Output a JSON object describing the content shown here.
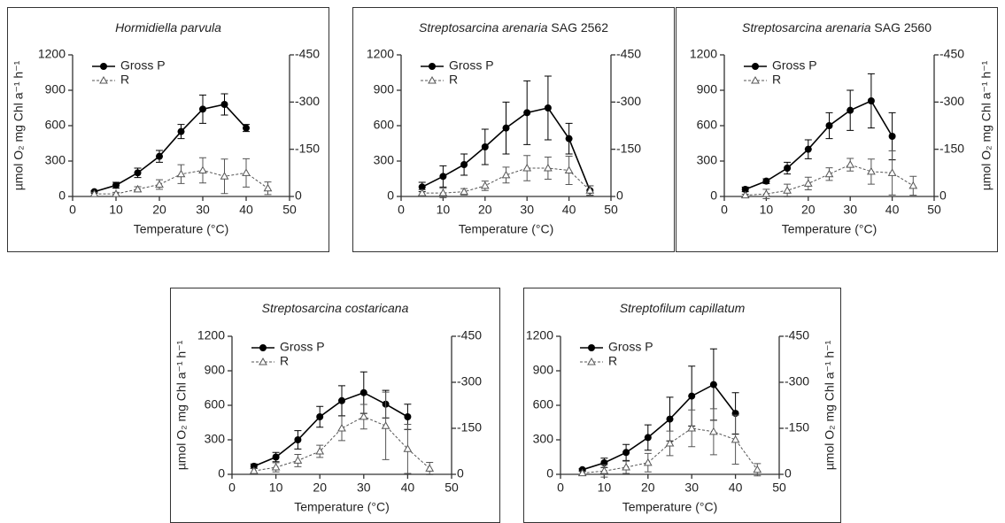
{
  "chart_data": [
    {
      "type": "line",
      "title": "Hormidiella parvula",
      "x_label": "Temperature (°C)",
      "y_label": "µmol O₂ mg Chl a⁻¹ h⁻¹",
      "y_label_side": "left",
      "x": [
        5,
        10,
        15,
        20,
        25,
        30,
        35,
        40,
        45
      ],
      "series": [
        {
          "name": "Gross P",
          "color": "#000000",
          "marker": "circle",
          "dashed": false,
          "values": [
            40,
            95,
            200,
            340,
            550,
            740,
            780,
            580,
            null
          ],
          "errors": [
            10,
            25,
            40,
            50,
            60,
            120,
            90,
            30,
            null
          ]
        },
        {
          "name": "R",
          "color": "#555555",
          "marker": "triangle",
          "dashed": true,
          "axis": "y2",
          "values": [
            -8,
            -8,
            -23,
            -38,
            -71,
            -83,
            -64,
            -75,
            -26
          ],
          "errors": [
            5,
            5,
            8,
            15,
            30,
            40,
            55,
            45,
            20
          ]
        }
      ],
      "xlim": [
        0,
        50
      ],
      "xticks": [
        0,
        10,
        20,
        30,
        40,
        50
      ],
      "ylim": [
        0,
        1200
      ],
      "yticks": [
        0,
        300,
        600,
        900,
        1200
      ],
      "y2lim": [
        0,
        -450
      ],
      "y2ticks": [
        0,
        -150,
        -300,
        -450
      ],
      "legend": "upper left"
    },
    {
      "type": "line",
      "title": "Streptosarcina arenaria",
      "strain": "SAG 2562",
      "x_label": "Temperature (°C)",
      "x": [
        5,
        10,
        15,
        20,
        25,
        30,
        35,
        40,
        45
      ],
      "series": [
        {
          "name": "Gross P",
          "color": "#000000",
          "marker": "circle",
          "dashed": false,
          "values": [
            80,
            170,
            270,
            420,
            580,
            710,
            750,
            490,
            50
          ],
          "errors": [
            40,
            90,
            90,
            150,
            220,
            270,
            270,
            130,
            40
          ]
        },
        {
          "name": "R",
          "color": "#555555",
          "marker": "triangle",
          "dashed": true,
          "axis": "y2",
          "values": [
            -11,
            -11,
            -15,
            -34,
            -68,
            -90,
            -90,
            -83,
            -19
          ],
          "errors": [
            10,
            15,
            10,
            15,
            25,
            40,
            35,
            45,
            15
          ]
        }
      ],
      "xlim": [
        0,
        50
      ],
      "xticks": [
        0,
        10,
        20,
        30,
        40,
        50
      ],
      "ylim": [
        0,
        1200
      ],
      "yticks": [
        0,
        300,
        600,
        900,
        1200
      ],
      "y2lim": [
        0,
        -450
      ],
      "y2ticks": [
        0,
        -150,
        -300,
        -450
      ],
      "legend": "upper left"
    },
    {
      "type": "line",
      "title": "Streptosarcina arenaria",
      "strain": "SAG 2560",
      "x_label": "Temperature (°C)",
      "y_label": "µmol O₂ mg Chl a⁻¹ h⁻¹",
      "y_label_side": "right",
      "x": [
        5,
        10,
        15,
        20,
        25,
        30,
        35,
        40,
        45
      ],
      "series": [
        {
          "name": "Gross P",
          "color": "#000000",
          "marker": "circle",
          "dashed": false,
          "values": [
            60,
            130,
            240,
            400,
            600,
            730,
            810,
            510,
            null
          ],
          "errors": [
            20,
            20,
            50,
            80,
            110,
            170,
            230,
            200,
            null
          ]
        },
        {
          "name": "R",
          "color": "#555555",
          "marker": "triangle",
          "dashed": true,
          "axis": "y2",
          "values": [
            -4,
            -8,
            -19,
            -41,
            -71,
            -101,
            -79,
            -75,
            -34
          ],
          "errors": [
            3,
            15,
            20,
            20,
            20,
            20,
            40,
            70,
            30
          ]
        }
      ],
      "xlim": [
        0,
        50
      ],
      "xticks": [
        0,
        10,
        20,
        30,
        40,
        50
      ],
      "ylim": [
        0,
        1200
      ],
      "yticks": [
        0,
        300,
        600,
        900,
        1200
      ],
      "y2lim": [
        0,
        -450
      ],
      "y2ticks": [
        0,
        -150,
        -300,
        -450
      ],
      "legend": "upper left"
    },
    {
      "type": "line",
      "title": "Streptosarcina costaricana",
      "x_label": "Temperature (°C)",
      "y_label": "µmol O₂ mg Chl a⁻¹ h⁻¹",
      "y_label_side": "left",
      "x": [
        5,
        10,
        15,
        20,
        25,
        30,
        35,
        40,
        45
      ],
      "series": [
        {
          "name": "Gross P",
          "color": "#000000",
          "marker": "circle",
          "dashed": false,
          "values": [
            70,
            150,
            300,
            500,
            640,
            710,
            610,
            500,
            null
          ],
          "errors": [
            20,
            40,
            80,
            90,
            130,
            180,
            120,
            110,
            null
          ]
        },
        {
          "name": "R",
          "color": "#555555",
          "marker": "triangle",
          "dashed": true,
          "axis": "y2",
          "values": [
            -11,
            -23,
            -45,
            -75,
            -150,
            -188,
            -158,
            -83,
            -19
          ],
          "errors": [
            8,
            15,
            20,
            20,
            40,
            40,
            110,
            80,
            20
          ]
        }
      ],
      "xlim": [
        0,
        50
      ],
      "xticks": [
        0,
        10,
        20,
        30,
        40,
        50
      ],
      "ylim": [
        0,
        1200
      ],
      "yticks": [
        0,
        300,
        600,
        900,
        1200
      ],
      "y2lim": [
        0,
        -450
      ],
      "y2ticks": [
        0,
        -150,
        -300,
        -450
      ],
      "legend": "upper left"
    },
    {
      "type": "line",
      "title": "Streptofilum capillatum",
      "x_label": "Temperature (°C)",
      "y_label": "µmol O₂ mg Chl a⁻¹ h⁻¹",
      "y_label_side": "right",
      "x": [
        5,
        10,
        15,
        20,
        25,
        30,
        35,
        40,
        45
      ],
      "series": [
        {
          "name": "Gross P",
          "color": "#000000",
          "marker": "circle",
          "dashed": false,
          "values": [
            40,
            100,
            190,
            320,
            480,
            680,
            780,
            530,
            null
          ],
          "errors": [
            10,
            40,
            70,
            110,
            190,
            260,
            310,
            180,
            null
          ]
        },
        {
          "name": "R",
          "color": "#555555",
          "marker": "triangle",
          "dashed": true,
          "axis": "y2",
          "values": [
            -4,
            -11,
            -23,
            -38,
            -101,
            -150,
            -139,
            -113,
            -15
          ],
          "errors": [
            5,
            20,
            20,
            30,
            40,
            60,
            75,
            80,
            20
          ]
        }
      ],
      "xlim": [
        0,
        50
      ],
      "xticks": [
        0,
        10,
        20,
        30,
        40,
        50
      ],
      "ylim": [
        0,
        1200
      ],
      "yticks": [
        0,
        300,
        600,
        900,
        1200
      ],
      "y2lim": [
        0,
        -450
      ],
      "y2ticks": [
        0,
        -150,
        -300,
        -450
      ],
      "legend": "upper left"
    }
  ]
}
